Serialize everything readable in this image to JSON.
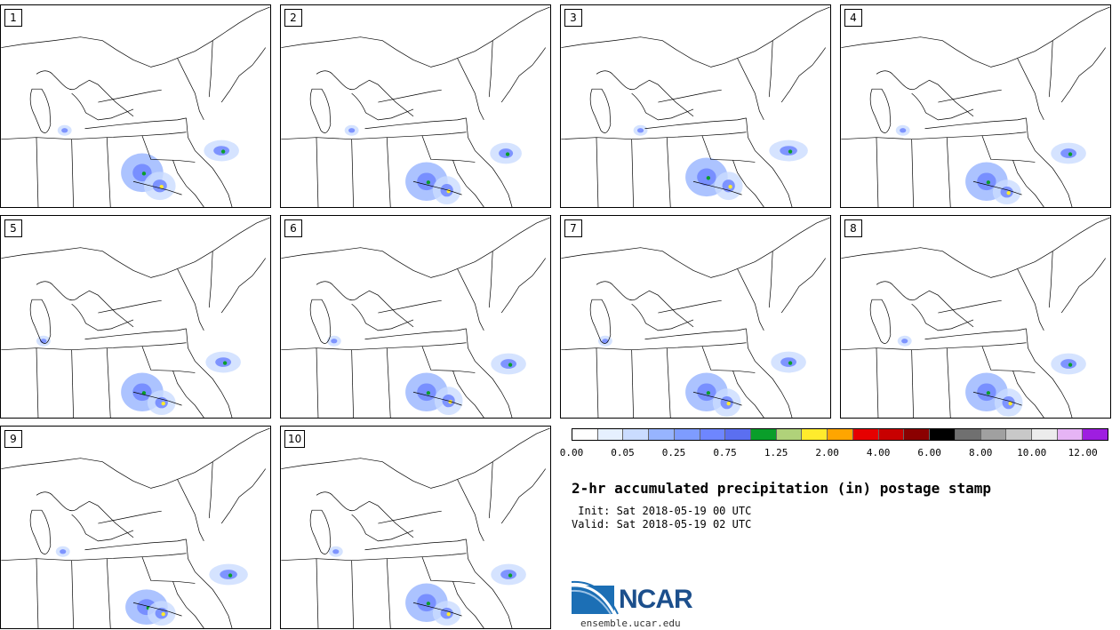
{
  "panels": [
    {
      "label": "1",
      "seed": 1
    },
    {
      "label": "2",
      "seed": 2
    },
    {
      "label": "3",
      "seed": 3
    },
    {
      "label": "4",
      "seed": 4
    },
    {
      "label": "5",
      "seed": 5
    },
    {
      "label": "6",
      "seed": 6
    },
    {
      "label": "7",
      "seed": 7
    },
    {
      "label": "8",
      "seed": 8
    },
    {
      "label": "9",
      "seed": 9
    },
    {
      "label": "10",
      "seed": 10
    }
  ],
  "colorbar": {
    "colors": [
      "#ffffff",
      "#e6f0ff",
      "#cadcff",
      "#97b4ff",
      "#7e9cff",
      "#6e86ff",
      "#5b6ff0",
      "#0a9e2a",
      "#b0d27a",
      "#ffeb2d",
      "#ffa500",
      "#e60000",
      "#c80000",
      "#8b0000",
      "#000000",
      "#707070",
      "#a0a0a0",
      "#c8c8c8",
      "#ececec",
      "#e6b4f5",
      "#9e1ee0"
    ],
    "labels": [
      "0.00",
      "0.05",
      "0.25",
      "0.75",
      "1.25",
      "2.00",
      "4.00",
      "6.00",
      "8.00",
      "10.00",
      "12.00"
    ]
  },
  "title": "2-hr accumulated precipitation (in) postage stamp",
  "init": " Init: Sat 2018-05-19 00 UTC",
  "valid": "Valid: Sat 2018-05-19 02 UTC",
  "logo": {
    "text": "NCAR",
    "url": "ensemble.ucar.edu"
  }
}
